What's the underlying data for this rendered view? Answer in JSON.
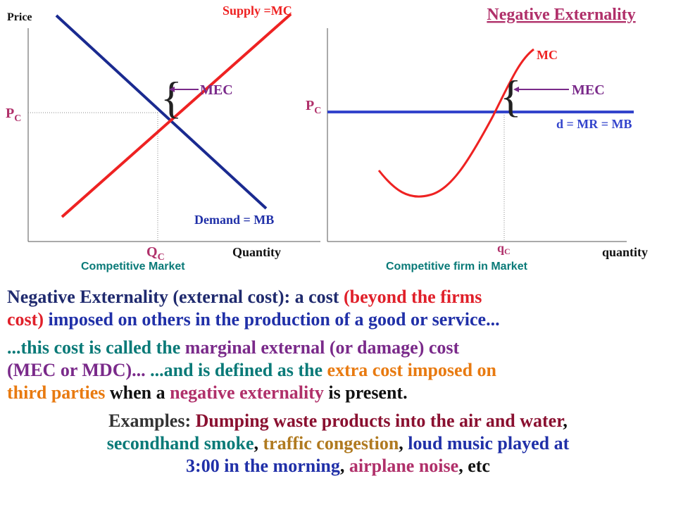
{
  "title": "Negative Externality",
  "market_graph": {
    "y_axis": "Price",
    "supply": "Supply =MC",
    "mec": "MEC",
    "price": {
      "letter": "P",
      "sub": "C"
    },
    "demand": "Demand = MB",
    "quantity": {
      "letter": "Q",
      "sub": "C"
    },
    "x_axis": "Quantity",
    "caption": "Competitive Market"
  },
  "firm_graph": {
    "mc": "MC",
    "mec": "MEC",
    "price": {
      "letter": "P",
      "sub": "C"
    },
    "demand": "d = MR = MB",
    "quantity": {
      "letter": "q",
      "sub": "C"
    },
    "x_axis": "quantity",
    "caption": "Competitive firm in Market"
  },
  "text_lines": [
    {
      "align": "left",
      "segments": [
        {
          "text": "Negative Externality (external cost): a cost ",
          "color": "#1f2a6e"
        },
        {
          "text": "(beyond the firms",
          "color": "#e0202a"
        }
      ]
    },
    {
      "align": "left",
      "segments": [
        {
          "text": "cost)",
          "color": "#e0202a"
        },
        {
          "text": " imposed on others in the production of a good or service...",
          "color": "#2030a8"
        }
      ]
    },
    {
      "align": "left",
      "segments": [
        {
          "text": "...this cost is called the ",
          "color": "#0a7a78"
        },
        {
          "text": "marginal external (or damage) cost",
          "color": "#7a2a8a"
        }
      ]
    },
    {
      "align": "left",
      "segments": [
        {
          "text": "(MEC or MDC)...",
          "color": "#7a2a8a"
        },
        {
          "text": " ...and is defined as the ",
          "color": "#0a7a78"
        },
        {
          "text": "extra cost",
          "color": "#e87a10"
        },
        {
          "text": " imposed on",
          "color": "#e87a10"
        }
      ]
    },
    {
      "align": "left",
      "segments": [
        {
          "text": "third parties",
          "color": "#e87a10"
        },
        {
          "text": " when a ",
          "color": "#111111"
        },
        {
          "text": "negative externality",
          "color": "#b0306a"
        },
        {
          "text": " is present.",
          "color": "#111111"
        }
      ]
    },
    {
      "align": "center",
      "segments": [
        {
          "text": "Examples: ",
          "color": "#333333"
        },
        {
          "text": "Dumping waste products into the air and water",
          "color": "#8a1030"
        },
        {
          "text": ",",
          "color": "#111111"
        }
      ]
    },
    {
      "align": "center",
      "segments": [
        {
          "text": "secondhand smoke",
          "color": "#0a7a78"
        },
        {
          "text": ", ",
          "color": "#111111"
        },
        {
          "text": "traffic congestion",
          "color": "#b07a20"
        },
        {
          "text": ", ",
          "color": "#111111"
        },
        {
          "text": "loud music played at",
          "color": "#2030a8"
        }
      ]
    },
    {
      "align": "center",
      "segments": [
        {
          "text": "3:00 in the morning",
          "color": "#2030a8"
        },
        {
          "text": ", ",
          "color": "#111111"
        },
        {
          "text": "airplane noise",
          "color": "#b0306a"
        },
        {
          "text": ", etc",
          "color": "#111111"
        }
      ]
    }
  ]
}
